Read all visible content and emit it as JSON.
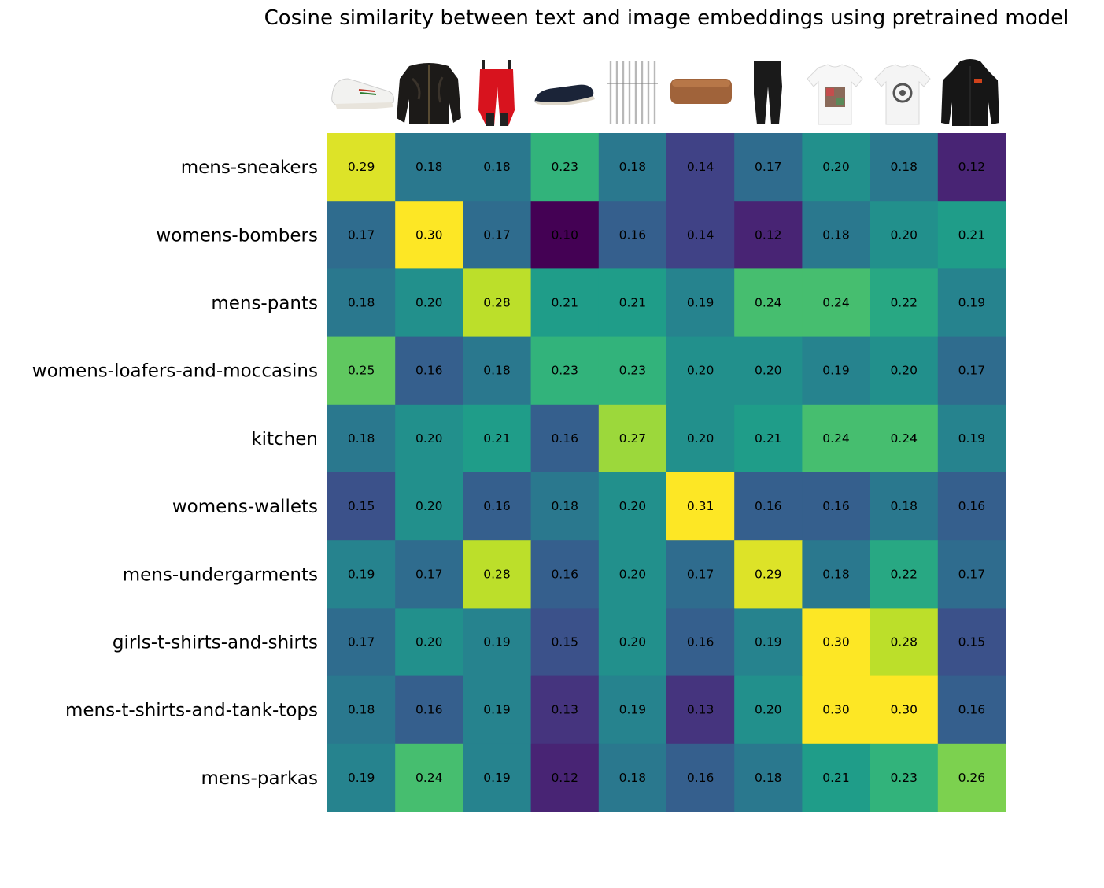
{
  "chart_data": {
    "type": "heatmap",
    "title": "Cosine similarity between text and image embeddings using pretrained model",
    "rows": [
      "mens-sneakers",
      "womens-bombers",
      "mens-pants",
      "womens-loafers-and-moccasins",
      "kitchen",
      "womens-wallets",
      "mens-undergarments",
      "girls-t-shirts-and-shirts",
      "mens-t-shirts-and-tank-tops",
      "mens-parkas"
    ],
    "columns": [
      "sneaker-image",
      "bomber-jacket-image",
      "red-pants-image",
      "loafer-image",
      "forks-image",
      "wallet-image",
      "leggings-image",
      "printed-t-shirt-image",
      "white-t-shirt-image",
      "black-parka-image"
    ],
    "values": [
      [
        0.29,
        0.18,
        0.18,
        0.23,
        0.18,
        0.14,
        0.17,
        0.2,
        0.18,
        0.12
      ],
      [
        0.17,
        0.3,
        0.17,
        0.1,
        0.16,
        0.14,
        0.12,
        0.18,
        0.2,
        0.21
      ],
      [
        0.18,
        0.2,
        0.28,
        0.21,
        0.21,
        0.19,
        0.24,
        0.24,
        0.22,
        0.19
      ],
      [
        0.25,
        0.16,
        0.18,
        0.23,
        0.23,
        0.2,
        0.2,
        0.19,
        0.2,
        0.17
      ],
      [
        0.18,
        0.2,
        0.21,
        0.16,
        0.27,
        0.2,
        0.21,
        0.24,
        0.24,
        0.19
      ],
      [
        0.15,
        0.2,
        0.16,
        0.18,
        0.2,
        0.31,
        0.16,
        0.16,
        0.18,
        0.16
      ],
      [
        0.19,
        0.17,
        0.28,
        0.16,
        0.2,
        0.17,
        0.29,
        0.18,
        0.22,
        0.17
      ],
      [
        0.17,
        0.2,
        0.19,
        0.15,
        0.2,
        0.16,
        0.19,
        0.3,
        0.28,
        0.15
      ],
      [
        0.18,
        0.16,
        0.19,
        0.13,
        0.19,
        0.13,
        0.2,
        0.3,
        0.3,
        0.16
      ],
      [
        0.19,
        0.24,
        0.19,
        0.12,
        0.18,
        0.16,
        0.18,
        0.21,
        0.23,
        0.26
      ]
    ],
    "vmin": 0.1,
    "vmax": 0.3,
    "colormap": "viridis",
    "colormap_stops": [
      "#440154",
      "#482878",
      "#3e4989",
      "#31688e",
      "#26828e",
      "#1f9e89",
      "#35b779",
      "#6ece58",
      "#b5de2b",
      "#fde725"
    ],
    "value_format": "2 decimals",
    "grid": false,
    "legend": "none"
  }
}
